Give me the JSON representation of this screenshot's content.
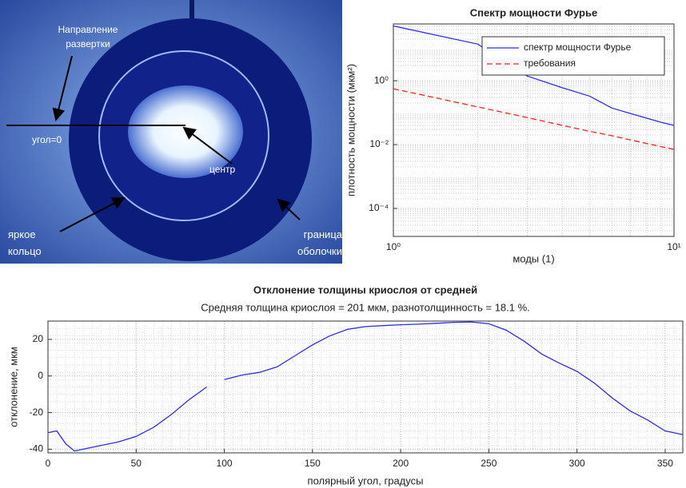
{
  "photo": {
    "labels": [
      "Направление развертки",
      "угол=0",
      "центр",
      "яркое кольцо",
      "граница оболочки"
    ]
  },
  "chart_data": [
    {
      "type": "line",
      "title": "Спектр мощности Фурье",
      "xlabel": "моды (1)",
      "ylabel": "плотность мощности (мкм²)",
      "xscale": "log",
      "yscale": "log",
      "grid": true,
      "legend": "upper right",
      "xlim": [
        1,
        10
      ],
      "ylim": [
        1.33e-05,
        60
      ],
      "xticks": [
        {
          "value": 1,
          "label": "10⁰"
        },
        {
          "value": 10,
          "label": "10¹"
        }
      ],
      "yticks": [
        {
          "value": 0.0001,
          "label": "10⁻⁴"
        },
        {
          "value": 0.01,
          "label": "10⁻²"
        },
        {
          "value": 1,
          "label": "10⁰"
        }
      ],
      "x": [
        1,
        2,
        3,
        4,
        5,
        6,
        7,
        8,
        9,
        10
      ],
      "series": [
        {
          "name": "спектр мощности Фурье",
          "color": "#2b2bff",
          "linestyle": "solid",
          "values": [
            52,
            14,
            1.4,
            0.6,
            0.33,
            0.14,
            0.094,
            0.067,
            0.05,
            0.04
          ]
        },
        {
          "name": "требования",
          "color": "#ff2020",
          "linestyle": "dashed",
          "values": [
            0.56,
            0.151,
            0.07,
            0.04,
            0.026,
            0.019,
            0.014,
            0.0108,
            0.0086,
            0.0071
          ]
        }
      ]
    },
    {
      "type": "line",
      "title": "Отклонение толщины криослоя от средней",
      "subtitle": "Средняя толщина криослоя = 201 мкм, разнотолщинность = 18.1 %.",
      "xlabel": "полярный угол, градусы",
      "ylabel": "отклонение, мкм",
      "grid": true,
      "xlim": [
        0,
        360
      ],
      "ylim": [
        -42,
        30
      ],
      "xticks": [
        0,
        50,
        100,
        150,
        200,
        250,
        300,
        350
      ],
      "yticks": [
        -40,
        -20,
        0,
        20
      ],
      "x": [
        0,
        5,
        10,
        15,
        20,
        30,
        40,
        50,
        60,
        70,
        80,
        90,
        95,
        100,
        110,
        120,
        130,
        140,
        150,
        160,
        170,
        180,
        190,
        200,
        210,
        220,
        230,
        240,
        250,
        260,
        270,
        280,
        290,
        300,
        310,
        320,
        330,
        340,
        350,
        360
      ],
      "series": [
        {
          "color": "#2b2bff",
          "linestyle": "solid",
          "values": [
            -31,
            -30,
            -37,
            -41,
            -40,
            -38,
            -36,
            -33,
            -28,
            -21,
            -13,
            -6,
            null,
            -2,
            0.5,
            2,
            5,
            11,
            17,
            22,
            25.5,
            27,
            27.5,
            28,
            28.3,
            28.8,
            29.3,
            29.5,
            28.5,
            25,
            19,
            12,
            7,
            2.5,
            -4,
            -12,
            -19,
            -24,
            -30,
            -32
          ]
        }
      ]
    }
  ]
}
